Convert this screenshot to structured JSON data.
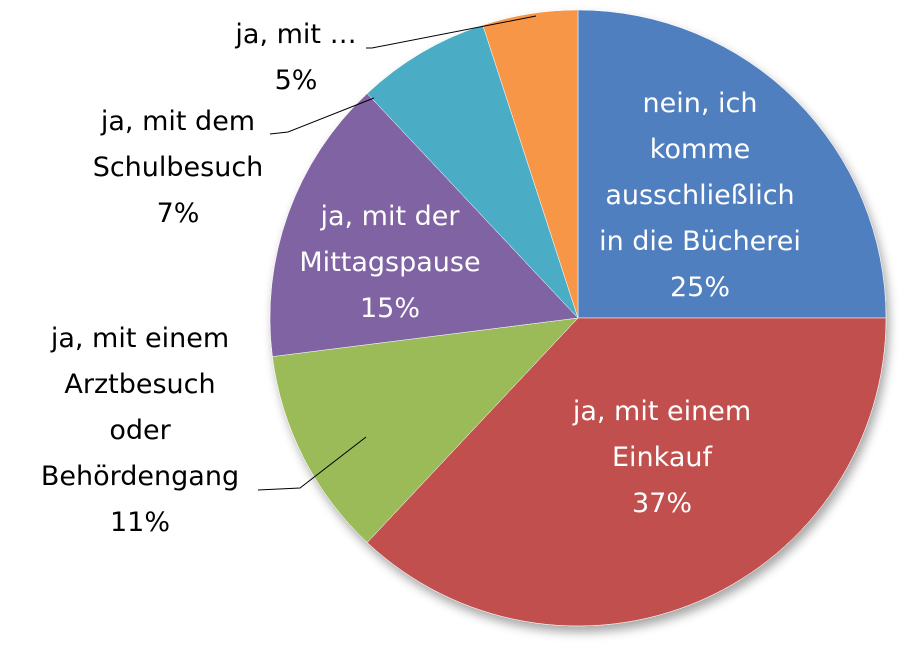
{
  "chart_data": {
    "type": "pie",
    "title": "",
    "slices": [
      {
        "label": [
          "nein, ich",
          "komme",
          "ausschließlich",
          "in die Bücherei"
        ],
        "value": 25,
        "value_label": "25%",
        "color": "#4f7fbf",
        "label_position": "inside"
      },
      {
        "label": [
          "ja, mit einem",
          "Einkauf"
        ],
        "value": 37,
        "value_label": "37%",
        "color": "#c0504d",
        "label_position": "inside"
      },
      {
        "label": [
          "ja, mit einem",
          "Arztbesuch",
          "oder",
          "Behördengang"
        ],
        "value": 11,
        "value_label": "11%",
        "color": "#9bbb59",
        "label_position": "outside"
      },
      {
        "label": [
          "ja, mit der",
          "Mittagspause"
        ],
        "value": 15,
        "value_label": "15%",
        "color": "#8064a2",
        "label_position": "inside"
      },
      {
        "label": [
          "ja, mit dem",
          "Schulbesuch"
        ],
        "value": 7,
        "value_label": "7%",
        "color": "#4bacc6",
        "label_position": "outside"
      },
      {
        "label": [
          "ja, mit …"
        ],
        "value": 5,
        "value_label": "5%",
        "color": "#f79646",
        "label_position": "outside"
      }
    ]
  }
}
